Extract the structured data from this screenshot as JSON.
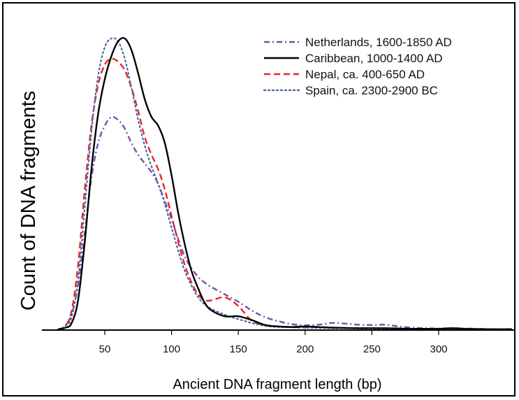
{
  "chart_data": {
    "type": "line",
    "xlabel": "Ancient DNA fragment length (bp)",
    "ylabel": "Count of DNA fragments",
    "xlim": [
      0,
      355
    ],
    "ylim": [
      0,
      1.0
    ],
    "xticks": [
      50,
      100,
      150,
      200,
      250,
      300
    ],
    "xtick_labels": [
      "50",
      "100",
      "150",
      "200",
      "250",
      "300"
    ],
    "grid": false,
    "legend_position": "top-right",
    "series": [
      {
        "name": "Netherlands, 1600-1850 AD",
        "color": "#7b4fa8",
        "dash": "dash-dot",
        "x": [
          15,
          20,
          25,
          30,
          35,
          40,
          45,
          50,
          55,
          60,
          65,
          70,
          75,
          80,
          85,
          90,
          95,
          100,
          105,
          110,
          115,
          120,
          125,
          130,
          140,
          150,
          160,
          170,
          180,
          190,
          200,
          210,
          220,
          230,
          240,
          250,
          260,
          270,
          280,
          290,
          300,
          310,
          320,
          330,
          340,
          355
        ],
        "y": [
          0.0,
          0.01,
          0.05,
          0.15,
          0.33,
          0.52,
          0.64,
          0.7,
          0.73,
          0.72,
          0.69,
          0.64,
          0.6,
          0.57,
          0.54,
          0.5,
          0.44,
          0.38,
          0.31,
          0.25,
          0.21,
          0.18,
          0.16,
          0.145,
          0.12,
          0.095,
          0.065,
          0.042,
          0.028,
          0.018,
          0.014,
          0.016,
          0.022,
          0.02,
          0.016,
          0.015,
          0.016,
          0.01,
          0.006,
          0.004,
          0.003,
          0.004,
          0.003,
          0.002,
          0.001,
          0.001
        ]
      },
      {
        "name": "Caribbean, 1000-1400 AD",
        "color": "#000000",
        "dash": "solid",
        "x": [
          15,
          20,
          25,
          30,
          35,
          40,
          45,
          50,
          55,
          60,
          65,
          70,
          75,
          80,
          85,
          90,
          95,
          100,
          105,
          110,
          115,
          120,
          125,
          130,
          140,
          150,
          160,
          170,
          180,
          190,
          200,
          210,
          220,
          230,
          240,
          250,
          260,
          270,
          280,
          290,
          300,
          310,
          320,
          330,
          340,
          355
        ],
        "y": [
          0.0,
          0.005,
          0.02,
          0.1,
          0.3,
          0.55,
          0.74,
          0.86,
          0.94,
          0.99,
          1.0,
          0.96,
          0.88,
          0.79,
          0.73,
          0.7,
          0.64,
          0.53,
          0.4,
          0.29,
          0.2,
          0.14,
          0.09,
          0.065,
          0.045,
          0.045,
          0.032,
          0.015,
          0.01,
          0.008,
          0.01,
          0.008,
          0.006,
          0.005,
          0.004,
          0.004,
          0.004,
          0.003,
          0.002,
          0.002,
          0.002,
          0.004,
          0.002,
          0.001,
          0.0,
          0.0
        ]
      },
      {
        "name": "Nepal, ca. 400-650 AD",
        "color": "#e8242a",
        "dash": "dashed",
        "x": [
          15,
          20,
          25,
          30,
          35,
          40,
          45,
          50,
          55,
          60,
          65,
          70,
          75,
          80,
          85,
          90,
          95,
          100,
          105,
          110,
          115,
          120,
          125,
          130,
          140,
          150,
          160,
          170,
          180,
          190,
          200,
          210,
          220,
          230,
          240,
          250,
          260,
          270,
          280,
          290,
          300,
          310,
          320,
          330,
          340,
          355
        ],
        "y": [
          0.0,
          0.01,
          0.06,
          0.22,
          0.48,
          0.7,
          0.84,
          0.91,
          0.93,
          0.92,
          0.89,
          0.83,
          0.75,
          0.66,
          0.6,
          0.55,
          0.48,
          0.39,
          0.3,
          0.22,
          0.16,
          0.12,
          0.1,
          0.1,
          0.11,
          0.08,
          0.03,
          0.015,
          0.01,
          0.008,
          0.006,
          0.008,
          0.006,
          0.005,
          0.004,
          0.004,
          0.003,
          0.002,
          0.002,
          0.001,
          0.001,
          0.001,
          0.001,
          0.0,
          0.0,
          0.0
        ]
      },
      {
        "name": "Spain, ca. 2300-2900 BC",
        "color": "#4a6aa8",
        "dash": "dotted",
        "x": [
          15,
          20,
          25,
          30,
          35,
          40,
          45,
          50,
          55,
          60,
          65,
          70,
          75,
          80,
          85,
          90,
          95,
          100,
          105,
          110,
          115,
          120,
          125,
          130,
          140,
          150,
          160,
          170,
          180,
          190,
          200,
          210,
          220,
          230,
          240,
          250,
          260,
          270,
          280,
          290,
          300,
          310,
          320,
          330,
          340,
          355
        ],
        "y": [
          0.0,
          0.01,
          0.04,
          0.17,
          0.42,
          0.68,
          0.87,
          0.97,
          1.0,
          0.99,
          0.93,
          0.83,
          0.72,
          0.63,
          0.56,
          0.5,
          0.43,
          0.35,
          0.27,
          0.2,
          0.15,
          0.11,
          0.085,
          0.07,
          0.05,
          0.035,
          0.022,
          0.012,
          0.008,
          0.007,
          0.006,
          0.005,
          0.004,
          0.004,
          0.003,
          0.003,
          0.002,
          0.002,
          0.002,
          0.001,
          0.001,
          0.001,
          0.001,
          0.001,
          0.001,
          0.001
        ]
      }
    ]
  }
}
